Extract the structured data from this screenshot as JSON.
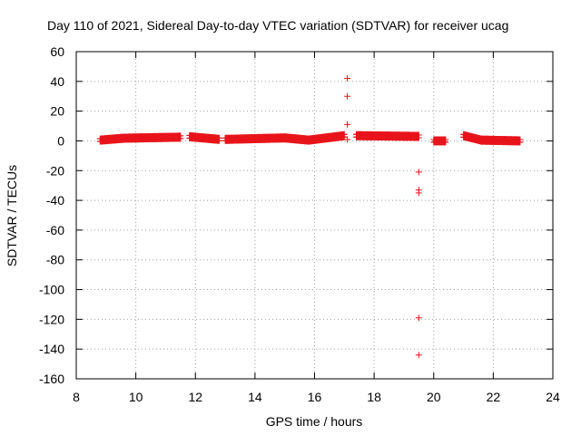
{
  "chart_data": {
    "type": "scatter",
    "title": "Day 110 of 2021, Sidereal Day-to-day VTEC variation (SDTVAR) for receiver ucag",
    "xlabel": "GPS time / hours",
    "ylabel": "SDTVAR / TECUs",
    "xlim": [
      8,
      24
    ],
    "ylim": [
      -160,
      60
    ],
    "xticks": [
      8,
      10,
      12,
      14,
      16,
      18,
      20,
      22,
      24
    ],
    "yticks": [
      60,
      40,
      20,
      0,
      -20,
      -40,
      -60,
      -80,
      -100,
      -120,
      -140,
      -160
    ],
    "grid": true,
    "marker": "+",
    "color": "#e8141b",
    "series": [
      {
        "name": "SDTVAR",
        "segments": [
          {
            "x_start": 8.8,
            "x_end": 9.6,
            "y_start": 0.5,
            "y_end": 1.8
          },
          {
            "x_start": 9.6,
            "x_end": 11.5,
            "y_start": 1.8,
            "y_end": 2.5
          },
          {
            "x_start": 11.8,
            "x_end": 12.8,
            "y_start": 2.8,
            "y_end": 1.0
          },
          {
            "x_start": 13.0,
            "x_end": 14.0,
            "y_start": 1.0,
            "y_end": 1.5
          },
          {
            "x_start": 14.0,
            "x_end": 15.0,
            "y_start": 1.5,
            "y_end": 2.0
          },
          {
            "x_start": 15.0,
            "x_end": 15.8,
            "y_start": 2.0,
            "y_end": 0.5
          },
          {
            "x_start": 15.8,
            "x_end": 17.0,
            "y_start": 0.5,
            "y_end": 3.5
          },
          {
            "x_start": 17.4,
            "x_end": 19.5,
            "y_start": 3.5,
            "y_end": 3.0
          },
          {
            "x_start": 20.0,
            "x_end": 20.4,
            "y_start": 0.0,
            "y_end": 0.0
          },
          {
            "x_start": 21.0,
            "x_end": 21.6,
            "y_start": 3.5,
            "y_end": 0.5
          },
          {
            "x_start": 21.6,
            "x_end": 22.9,
            "y_start": 0.5,
            "y_end": 0.0
          }
        ],
        "outliers": [
          {
            "x": 17.1,
            "y": 42
          },
          {
            "x": 17.1,
            "y": 30
          },
          {
            "x": 17.1,
            "y": 11
          },
          {
            "x": 17.1,
            "y": 1
          },
          {
            "x": 19.5,
            "y": -21
          },
          {
            "x": 19.5,
            "y": -33
          },
          {
            "x": 19.5,
            "y": -35
          },
          {
            "x": 19.5,
            "y": -119
          },
          {
            "x": 19.5,
            "y": -144
          }
        ]
      }
    ]
  }
}
